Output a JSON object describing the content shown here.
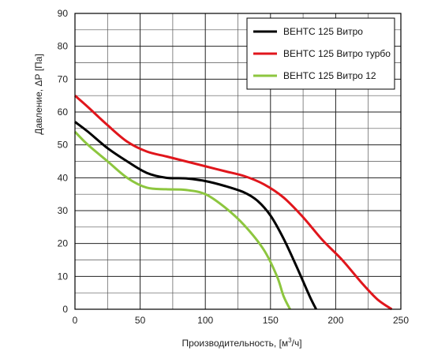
{
  "chart_data": {
    "type": "line",
    "xlabel": "Производительность, [м³/ч]",
    "xlabel_main": "Производительность, [м",
    "xlabel_sup": "3",
    "xlabel_tail": "/ч]",
    "ylabel": "Давление, ΔР [Па]",
    "xlim": [
      0,
      250
    ],
    "ylim": [
      0,
      90
    ],
    "xticks": [
      0,
      50,
      100,
      150,
      200,
      250
    ],
    "yticks": [
      0,
      10,
      20,
      30,
      40,
      50,
      60,
      70,
      80,
      90
    ],
    "x_minor_step": 25,
    "y_minor_step": 5,
    "grid": true,
    "legend_position": "top-right",
    "series": [
      {
        "name": "ВЕНТС 125 Витро",
        "color": "#000000",
        "x": [
          0,
          10,
          25,
          40,
          55,
          70,
          85,
          100,
          115,
          130,
          140,
          150,
          160,
          170,
          180,
          185
        ],
        "y": [
          57,
          54,
          49,
          45,
          41.5,
          40,
          39.8,
          39,
          37.5,
          35.5,
          33,
          28.5,
          21.5,
          13,
          4,
          0
        ]
      },
      {
        "name": "ВЕНТС 125 Витро турбо",
        "color": "#e0161c",
        "x": [
          0,
          10,
          25,
          40,
          55,
          70,
          85,
          100,
          115,
          130,
          145,
          160,
          175,
          190,
          205,
          220,
          232,
          243
        ],
        "y": [
          65,
          61.5,
          56,
          51,
          48,
          46.5,
          45,
          43.5,
          42,
          40.5,
          38,
          34,
          28,
          21,
          15,
          8,
          3,
          0
        ]
      },
      {
        "name": "ВЕНТС 125 Витро 12",
        "color": "#8dc63f",
        "x": [
          0,
          10,
          25,
          40,
          55,
          70,
          85,
          100,
          115,
          130,
          145,
          155,
          160,
          165
        ],
        "y": [
          54,
          50,
          45,
          40,
          37,
          36.5,
          36.3,
          35,
          31,
          25.5,
          18,
          10,
          4,
          0
        ]
      }
    ]
  }
}
